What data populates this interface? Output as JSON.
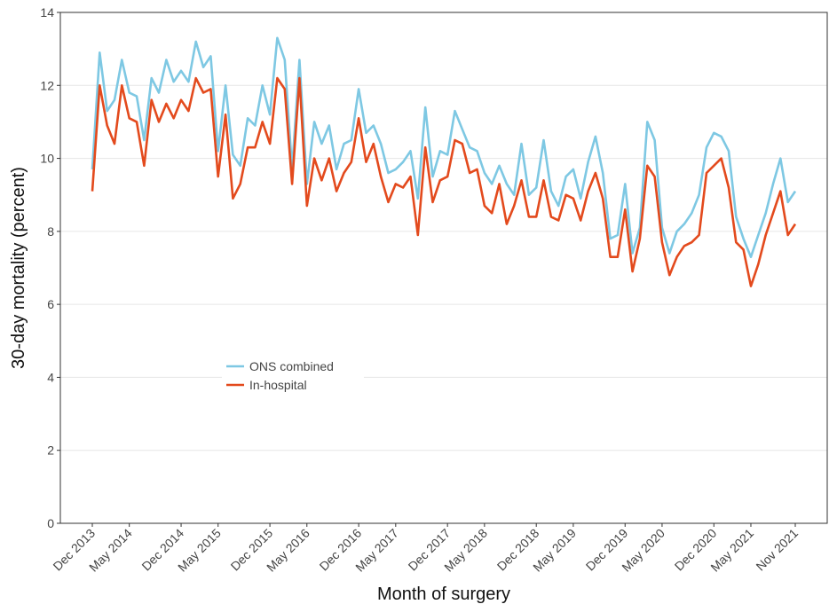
{
  "chart_data": {
    "type": "line",
    "x_label": "Month of surgery",
    "y_label": "30-day mortality (percent)",
    "x": [
      "2013-12",
      "2014-01",
      "2014-02",
      "2014-03",
      "2014-04",
      "2014-05",
      "2014-06",
      "2014-07",
      "2014-08",
      "2014-09",
      "2014-10",
      "2014-11",
      "2014-12",
      "2015-01",
      "2015-02",
      "2015-03",
      "2015-04",
      "2015-05",
      "2015-06",
      "2015-07",
      "2015-08",
      "2015-09",
      "2015-10",
      "2015-11",
      "2015-12",
      "2016-01",
      "2016-02",
      "2016-03",
      "2016-04",
      "2016-05",
      "2016-06",
      "2016-07",
      "2016-08",
      "2016-09",
      "2016-10",
      "2016-11",
      "2016-12",
      "2017-01",
      "2017-02",
      "2017-03",
      "2017-04",
      "2017-05",
      "2017-06",
      "2017-07",
      "2017-08",
      "2017-09",
      "2017-10",
      "2017-11",
      "2017-12",
      "2018-01",
      "2018-02",
      "2018-03",
      "2018-04",
      "2018-05",
      "2018-06",
      "2018-07",
      "2018-08",
      "2018-09",
      "2018-10",
      "2018-11",
      "2018-12",
      "2019-01",
      "2019-02",
      "2019-03",
      "2019-04",
      "2019-05",
      "2019-06",
      "2019-07",
      "2019-08",
      "2019-09",
      "2019-10",
      "2019-11",
      "2019-12",
      "2020-01",
      "2020-02",
      "2020-03",
      "2020-04",
      "2020-05",
      "2020-06",
      "2020-07",
      "2020-08",
      "2020-09",
      "2020-10",
      "2020-11",
      "2020-12",
      "2021-01",
      "2021-02",
      "2021-03",
      "2021-04",
      "2021-05",
      "2021-06",
      "2021-07",
      "2021-08",
      "2021-09",
      "2021-10",
      "2021-11"
    ],
    "xticks": [
      {
        "value": "2013-12",
        "label": "Dec 2013"
      },
      {
        "value": "2014-05",
        "label": "May 2014"
      },
      {
        "value": "2014-12",
        "label": "Dec 2014"
      },
      {
        "value": "2015-05",
        "label": "May 2015"
      },
      {
        "value": "2015-12",
        "label": "Dec 2015"
      },
      {
        "value": "2016-05",
        "label": "May 2016"
      },
      {
        "value": "2016-12",
        "label": "Dec 2016"
      },
      {
        "value": "2017-05",
        "label": "May 2017"
      },
      {
        "value": "2017-12",
        "label": "Dec 2017"
      },
      {
        "value": "2018-05",
        "label": "May 2018"
      },
      {
        "value": "2018-12",
        "label": "Dec 2018"
      },
      {
        "value": "2019-05",
        "label": "May 2019"
      },
      {
        "value": "2019-12",
        "label": "Dec 2019"
      },
      {
        "value": "2020-05",
        "label": "May 2020"
      },
      {
        "value": "2020-12",
        "label": "Dec 2020"
      },
      {
        "value": "2021-05",
        "label": "May 2021"
      },
      {
        "value": "2021-11",
        "label": "Nov 2021"
      }
    ],
    "ylim": [
      0,
      14
    ],
    "yticks": [
      0,
      2,
      4,
      6,
      8,
      10,
      12,
      14
    ],
    "grid": true,
    "legend": "center-left",
    "series": [
      {
        "name": "ONS combined",
        "color": "#7ec8e3",
        "values": [
          9.7,
          12.9,
          11.3,
          11.6,
          12.7,
          11.8,
          11.7,
          10.5,
          12.2,
          11.8,
          12.7,
          12.1,
          12.4,
          12.1,
          13.2,
          12.5,
          12.8,
          10.2,
          12.0,
          10.1,
          9.8,
          11.1,
          10.9,
          12.0,
          11.2,
          13.3,
          12.7,
          9.7,
          12.7,
          9.3,
          11.0,
          10.4,
          10.9,
          9.7,
          10.4,
          10.5,
          11.9,
          10.7,
          10.9,
          10.4,
          9.6,
          9.7,
          9.9,
          10.2,
          8.9,
          11.4,
          9.5,
          10.2,
          10.1,
          11.3,
          10.8,
          10.3,
          10.2,
          9.6,
          9.3,
          9.8,
          9.3,
          9.0,
          10.4,
          9.0,
          9.2,
          10.5,
          9.1,
          8.7,
          9.5,
          9.7,
          8.9,
          9.9,
          10.6,
          9.6,
          7.8,
          7.9,
          9.3,
          7.4,
          8.1,
          11.0,
          10.5,
          8.1,
          7.4,
          8.0,
          8.2,
          8.5,
          9.0,
          10.3,
          10.7,
          10.6,
          10.2,
          8.4,
          7.8,
          7.3,
          7.9,
          8.5,
          9.3,
          10.0,
          8.8,
          9.1
        ]
      },
      {
        "name": "In-hospital",
        "color": "#e34a1d",
        "values": [
          9.1,
          12.0,
          10.9,
          10.4,
          12.0,
          11.1,
          11.0,
          9.8,
          11.6,
          11.0,
          11.5,
          11.1,
          11.6,
          11.3,
          12.2,
          11.8,
          11.9,
          9.5,
          11.2,
          8.9,
          9.3,
          10.3,
          10.3,
          11.0,
          10.4,
          12.2,
          11.9,
          9.3,
          12.2,
          8.7,
          10.0,
          9.4,
          10.0,
          9.1,
          9.6,
          9.9,
          11.1,
          9.9,
          10.4,
          9.5,
          8.8,
          9.3,
          9.2,
          9.5,
          7.9,
          10.3,
          8.8,
          9.4,
          9.5,
          10.5,
          10.4,
          9.6,
          9.7,
          8.7,
          8.5,
          9.3,
          8.2,
          8.7,
          9.4,
          8.4,
          8.4,
          9.4,
          8.4,
          8.3,
          9.0,
          8.9,
          8.3,
          9.1,
          9.6,
          8.9,
          7.3,
          7.3,
          8.6,
          6.9,
          7.8,
          9.8,
          9.5,
          7.7,
          6.8,
          7.3,
          7.6,
          7.7,
          7.9,
          9.6,
          9.8,
          10.0,
          9.2,
          7.7,
          7.5,
          6.5,
          7.1,
          7.9,
          8.5,
          9.1,
          7.9,
          8.2
        ]
      }
    ]
  }
}
